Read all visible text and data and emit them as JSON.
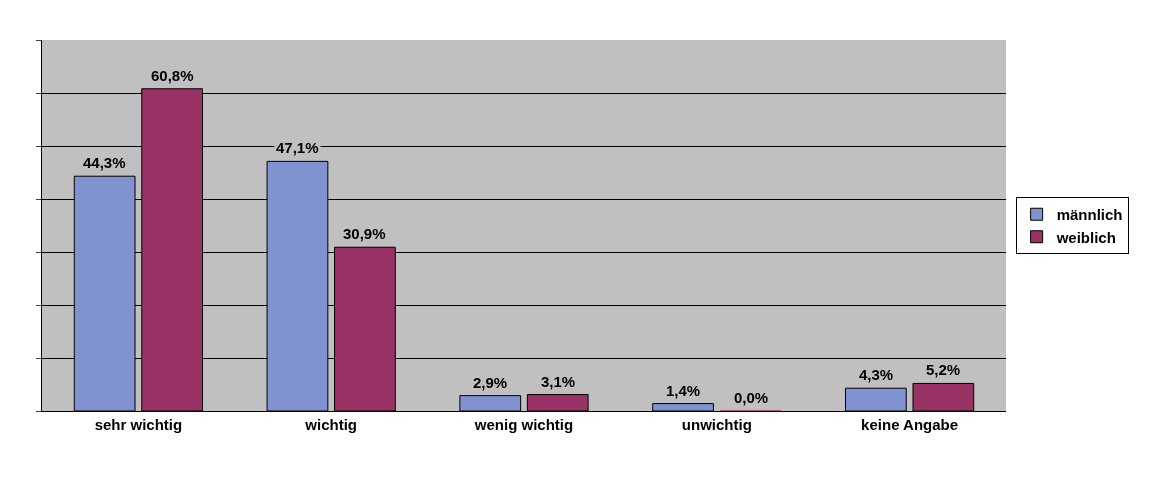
{
  "chart_data": {
    "type": "bar",
    "categories": [
      "sehr wichtig",
      "wichtig",
      "wenig wichtig",
      "unwichtig",
      "keine Angabe"
    ],
    "series": [
      {
        "name": "männlich",
        "color": "#8093d0",
        "values": [
          44.3,
          47.1,
          2.9,
          1.4,
          4.3
        ],
        "value_labels": [
          "44,3%",
          "47,1%",
          "2,9%",
          "1,4%",
          "4,3%"
        ]
      },
      {
        "name": "weiblich",
        "color": "#993366",
        "values": [
          60.8,
          30.9,
          3.1,
          0.0,
          5.2
        ],
        "value_labels": [
          "60,8%",
          "30,9%",
          "3,1%",
          "0,0%",
          "5,2%"
        ]
      }
    ],
    "ylim": [
      0,
      70
    ],
    "yticks": [
      {
        "value": 0,
        "label": null
      },
      {
        "value": 10,
        "label": null
      },
      {
        "value": 20,
        "label": null
      },
      {
        "value": 30,
        "label": null
      },
      {
        "value": 40,
        "label": null
      },
      {
        "value": 50,
        "label": null
      },
      {
        "value": 60,
        "label": null
      },
      {
        "value": 70,
        "label": null
      }
    ],
    "tick_labels": "x",
    "grid": "y",
    "legend": "right"
  }
}
